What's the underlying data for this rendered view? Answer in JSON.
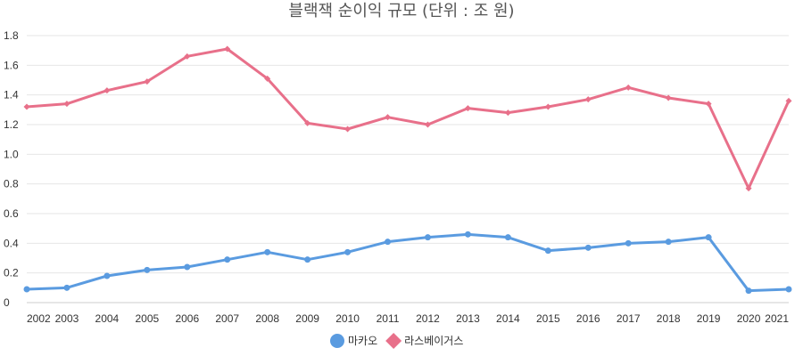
{
  "chart_data": {
    "type": "line",
    "title": "블랙잭 순이익 규모 (단위 : 조 원)",
    "xlabel": "",
    "ylabel": "",
    "x": [
      "2002",
      "2003",
      "2004",
      "2005",
      "2006",
      "2007",
      "2008",
      "2009",
      "2010",
      "2011",
      "2012",
      "2013",
      "2014",
      "2015",
      "2016",
      "2017",
      "2018",
      "2019",
      "2020",
      "2021"
    ],
    "ylim": [
      0,
      1.8
    ],
    "yticks": [
      "0",
      "0.2",
      "0.4",
      "0.6",
      "0.8",
      "1.0",
      "1.2",
      "1.4",
      "1.6",
      "1.8"
    ],
    "grid": true,
    "legend": "bottom-center",
    "series": [
      {
        "name": "마카오",
        "color": "#5a9be0",
        "marker": "circle",
        "values": [
          0.09,
          0.1,
          0.18,
          0.22,
          0.24,
          0.29,
          0.34,
          0.29,
          0.34,
          0.41,
          0.44,
          0.46,
          0.44,
          0.35,
          0.37,
          0.4,
          0.41,
          0.44,
          0.08,
          0.09
        ]
      },
      {
        "name": "라스베이거스",
        "color": "#e8708a",
        "marker": "diamond",
        "values": [
          1.32,
          1.34,
          1.43,
          1.49,
          1.66,
          1.71,
          1.51,
          1.21,
          1.17,
          1.25,
          1.2,
          1.31,
          1.28,
          1.32,
          1.37,
          1.45,
          1.38,
          1.34,
          0.77,
          1.36
        ]
      }
    ]
  }
}
